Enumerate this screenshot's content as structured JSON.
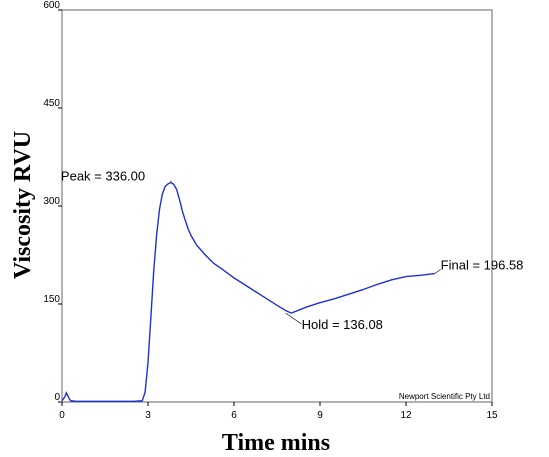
{
  "chart_data": {
    "type": "line",
    "title": "",
    "xlabel": "Time mins",
    "ylabel": "Viscosity RVU",
    "xlim": [
      0,
      15
    ],
    "ylim": [
      0,
      600
    ],
    "xticks": [
      0,
      3,
      6,
      9,
      12,
      15
    ],
    "yticks": [
      0,
      150,
      300,
      450,
      600
    ],
    "xtick_labels": [
      "0",
      "3",
      "6",
      "9",
      "12",
      "15"
    ],
    "ytick_labels": [
      "0",
      "150",
      "300",
      "450",
      "600"
    ],
    "grid": false,
    "line_color": "#1f2fd8",
    "series": [
      {
        "x": [
          0.0,
          0.1,
          0.15,
          0.2,
          0.25,
          0.3,
          0.5,
          1.0,
          1.5,
          2.0,
          2.5,
          2.8,
          2.9,
          3.0,
          3.1,
          3.2,
          3.3,
          3.4,
          3.5,
          3.6,
          3.7,
          3.8,
          3.9,
          4.0,
          4.1,
          4.2,
          4.3,
          4.4,
          4.5,
          4.7,
          5.0,
          5.3,
          5.6,
          6.0,
          6.5,
          7.0,
          7.5,
          7.8,
          8.0,
          8.5,
          9.0,
          9.5,
          10.0,
          10.5,
          11.0,
          11.5,
          12.0,
          12.5,
          13.0
        ],
        "y": [
          2,
          8,
          14,
          10,
          5,
          2,
          1,
          1,
          1,
          1,
          1,
          2,
          15,
          60,
          130,
          200,
          255,
          295,
          318,
          330,
          334,
          336,
          333,
          325,
          310,
          292,
          278,
          265,
          255,
          240,
          225,
          212,
          203,
          190,
          176,
          162,
          148,
          140,
          136.08,
          145,
          152,
          158,
          165,
          172,
          180,
          187,
          192,
          194,
          196.58
        ]
      }
    ],
    "annotations": [
      {
        "text": "Peak = 336.00",
        "x": 3.8,
        "y": 336
      },
      {
        "text": "Hold = 136.08",
        "x": 7.8,
        "y": 136.08
      },
      {
        "text": "Final = 196.58",
        "x": 13.0,
        "y": 196.58
      }
    ],
    "credit": "Newport Scientific Pty Ltd"
  }
}
